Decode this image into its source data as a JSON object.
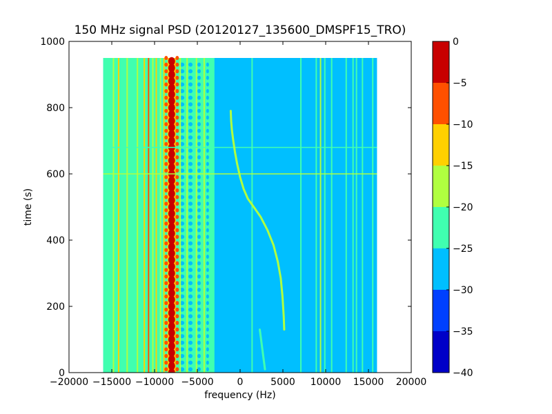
{
  "chart_data": {
    "type": "heatmap",
    "title": "150 MHz signal PSD (20120127_135600_DMSPF15_TRO)",
    "xlabel": "frequency (Hz)",
    "ylabel": "time (s)",
    "xlim": [
      -20000,
      20000
    ],
    "ylim": [
      0,
      1000
    ],
    "xticks": [
      -20000,
      -15000,
      -10000,
      -5000,
      0,
      5000,
      10000,
      15000,
      20000
    ],
    "xtick_labels": [
      "−20000",
      "−15000",
      "−10000",
      "−5000",
      "0",
      "5000",
      "10000",
      "15000",
      "20000"
    ],
    "yticks": [
      0,
      200,
      400,
      600,
      800,
      1000
    ],
    "ytick_labels": [
      "0",
      "200",
      "400",
      "600",
      "800",
      "1000"
    ],
    "data_extent": {
      "x": [
        -16000,
        16000
      ],
      "y": [
        0,
        950
      ]
    },
    "colorbar": {
      "levels": [
        -40,
        -35,
        -30,
        -25,
        -20,
        -15,
        -10,
        -5,
        0
      ],
      "tick_labels": [
        "−40",
        "−35",
        "−30",
        "−25",
        "−20",
        "−15",
        "−10",
        "−5",
        "0"
      ],
      "colors": [
        "#0000c8",
        "#0040ff",
        "#00bfff",
        "#40ffb0",
        "#b0ff40",
        "#ffd000",
        "#ff5000",
        "#c80000"
      ]
    },
    "background_level_color": "#00bfff",
    "left_band_level_color": "#40ffb0",
    "vertical_lines": [
      {
        "freq": -15600,
        "color": "#40ffb0"
      },
      {
        "freq": -14800,
        "color": "#b0ff40"
      },
      {
        "freq": -14200,
        "color": "#ffd000"
      },
      {
        "freq": -13200,
        "color": "#b0ff40"
      },
      {
        "freq": -12000,
        "color": "#b0ff40"
      },
      {
        "freq": -11200,
        "color": "#ffd000"
      },
      {
        "freq": -10700,
        "color": "#ff5000"
      },
      {
        "freq": -10200,
        "color": "#b0ff40"
      },
      {
        "freq": -9800,
        "color": "#ffd000"
      },
      {
        "freq": -9300,
        "color": "#b0ff40"
      },
      {
        "freq": -8900,
        "color": "#ffd000"
      },
      {
        "freq": -7600,
        "color": "#ffd000"
      },
      {
        "freq": -7000,
        "color": "#b0ff40"
      },
      {
        "freq": -6200,
        "color": "#b0ff40"
      },
      {
        "freq": -5100,
        "color": "#b0ff40"
      },
      {
        "freq": -4200,
        "color": "#b0ff40"
      },
      {
        "freq": -3400,
        "color": "#40ffb0"
      },
      {
        "freq": 1400,
        "color": "#40ffb0"
      },
      {
        "freq": 7100,
        "color": "#40ffb0"
      },
      {
        "freq": 8900,
        "color": "#40ffb0"
      },
      {
        "freq": 9400,
        "color": "#b0ff40"
      },
      {
        "freq": 9900,
        "color": "#40ffb0"
      },
      {
        "freq": 10700,
        "color": "#40ffb0"
      },
      {
        "freq": 12400,
        "color": "#40ffb0"
      },
      {
        "freq": 13200,
        "color": "#40ffb0"
      },
      {
        "freq": 13600,
        "color": "#40ffb0"
      },
      {
        "freq": 14300,
        "color": "#40ffb0"
      },
      {
        "freq": 15500,
        "color": "#40ffb0"
      }
    ],
    "carrier": {
      "freq": -8000,
      "period_s": 20
    },
    "horizontal_lines": [
      {
        "time": 680,
        "color": "#40ffb0"
      },
      {
        "time": 600,
        "color": "#b0ff40"
      }
    ],
    "doppler_track": {
      "color": "#b0ff40",
      "points": [
        [
          -1100,
          790
        ],
        [
          -1050,
          760
        ],
        [
          -950,
          730
        ],
        [
          -800,
          700
        ],
        [
          -600,
          665
        ],
        [
          -350,
          630
        ],
        [
          0,
          590
        ],
        [
          400,
          555
        ],
        [
          900,
          525
        ],
        [
          1600,
          500
        ],
        [
          2400,
          470
        ],
        [
          3200,
          430
        ],
        [
          3900,
          385
        ],
        [
          4400,
          335
        ],
        [
          4750,
          285
        ],
        [
          4950,
          230
        ],
        [
          5100,
          170
        ],
        [
          5150,
          130
        ]
      ]
    },
    "early_track": {
      "color": "#40ffb0",
      "points": [
        [
          2300,
          130
        ],
        [
          2500,
          90
        ],
        [
          2700,
          50
        ],
        [
          2900,
          10
        ]
      ]
    }
  }
}
